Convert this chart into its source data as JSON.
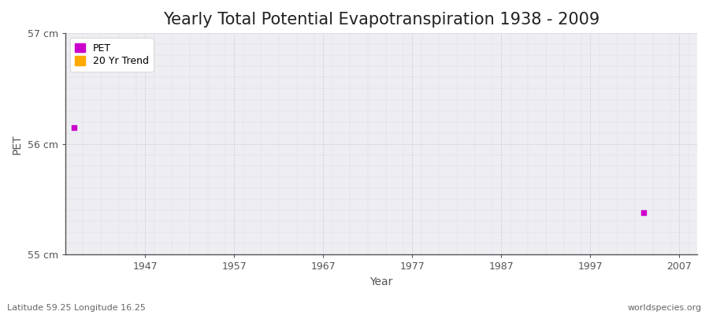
{
  "title": "Yearly Total Potential Evapotranspiration 1938 - 2009",
  "xlabel": "Year",
  "ylabel": "PET",
  "background_color": "#ffffff",
  "plot_bg_color": "#ededf2",
  "ylim": [
    55,
    57
  ],
  "xlim": [
    1938,
    2009
  ],
  "yticks": [
    55,
    56,
    57
  ],
  "ytick_labels": [
    "55 cm",
    "56 cm",
    "57 cm"
  ],
  "xticks": [
    1947,
    1957,
    1967,
    1977,
    1987,
    1997,
    2007
  ],
  "pet_points": [
    [
      1939,
      56.15
    ],
    [
      2003,
      55.38
    ]
  ],
  "pet_color": "#cc00cc",
  "trend_color": "#ffaa00",
  "legend_labels": [
    "PET",
    "20 Yr Trend"
  ],
  "footnote_left": "Latitude 59.25 Longitude 16.25",
  "footnote_right": "worldspecies.org",
  "title_fontsize": 15,
  "label_fontsize": 10,
  "tick_fontsize": 9,
  "footnote_fontsize": 8,
  "grid_color": "#ccccdd",
  "spine_color": "#555555"
}
